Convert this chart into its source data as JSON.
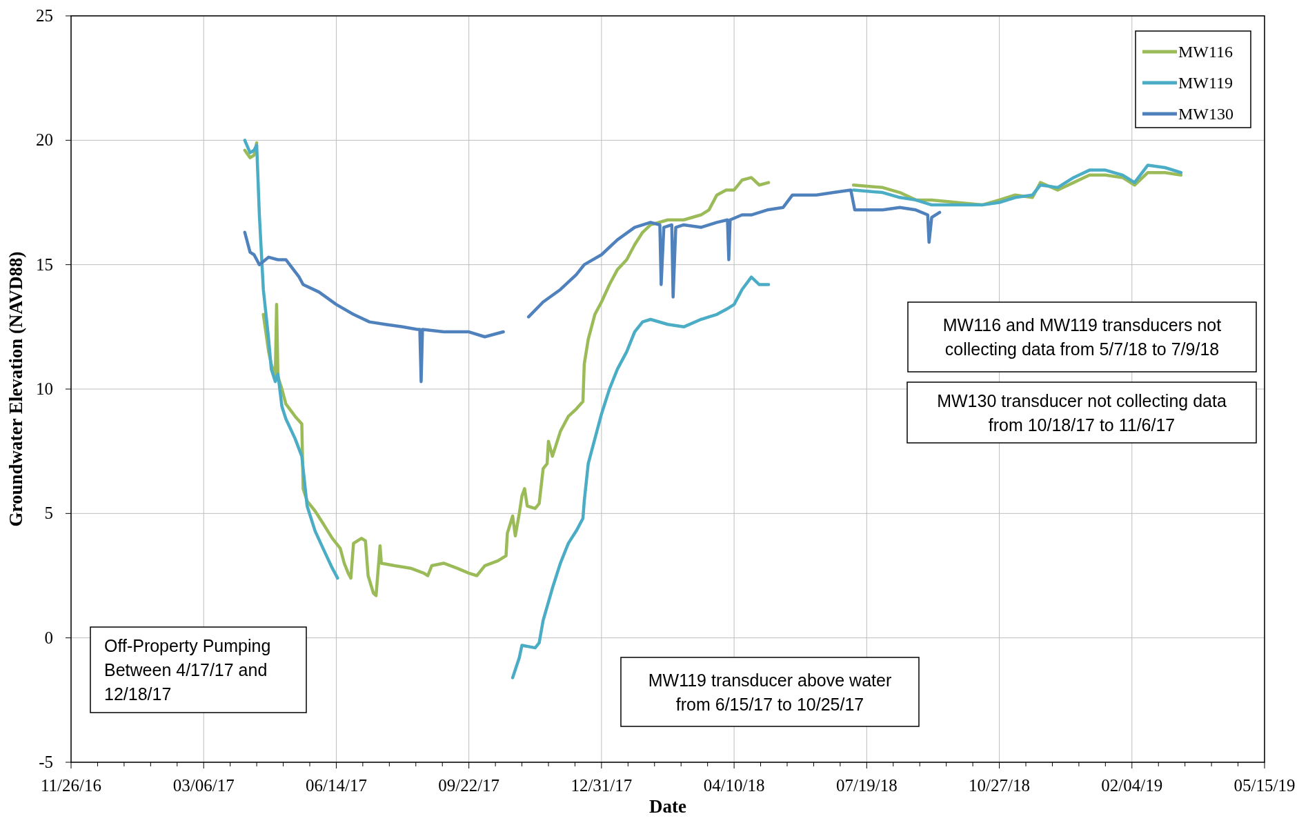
{
  "chart_data": {
    "type": "line",
    "xlabel": "Date",
    "ylabel": "Groundwater Elevation (NAVD88)",
    "xlim": [
      "2016-11-26",
      "2019-05-15"
    ],
    "ylim": [
      -5,
      25
    ],
    "yticks": [
      -5,
      0,
      5,
      10,
      15,
      20,
      25
    ],
    "xticks": [
      {
        "value": "2016-11-26",
        "label": "11/26/16"
      },
      {
        "value": "2016-12-16",
        "label": null
      },
      {
        "value": "2017-01-05",
        "label": null
      },
      {
        "value": "2017-01-25",
        "label": null
      },
      {
        "value": "2017-02-14",
        "label": null
      },
      {
        "value": "2017-03-06",
        "label": "03/06/17"
      },
      {
        "value": "2017-03-26",
        "label": null
      },
      {
        "value": "2017-04-15",
        "label": null
      },
      {
        "value": "2017-05-05",
        "label": null
      },
      {
        "value": "2017-05-25",
        "label": null
      },
      {
        "value": "2017-06-14",
        "label": "06/14/17"
      },
      {
        "value": "2017-07-04",
        "label": null
      },
      {
        "value": "2017-07-24",
        "label": null
      },
      {
        "value": "2017-08-13",
        "label": null
      },
      {
        "value": "2017-09-02",
        "label": null
      },
      {
        "value": "2017-09-22",
        "label": "09/22/17"
      },
      {
        "value": "2017-10-12",
        "label": null
      },
      {
        "value": "2017-11-01",
        "label": null
      },
      {
        "value": "2017-11-21",
        "label": null
      },
      {
        "value": "2017-12-11",
        "label": null
      },
      {
        "value": "2017-12-31",
        "label": "12/31/17"
      },
      {
        "value": "2018-01-20",
        "label": null
      },
      {
        "value": "2018-02-09",
        "label": null
      },
      {
        "value": "2018-03-01",
        "label": null
      },
      {
        "value": "2018-03-21",
        "label": null
      },
      {
        "value": "2018-04-10",
        "label": "04/10/18"
      },
      {
        "value": "2018-04-30",
        "label": null
      },
      {
        "value": "2018-05-20",
        "label": null
      },
      {
        "value": "2018-06-09",
        "label": null
      },
      {
        "value": "2018-06-29",
        "label": null
      },
      {
        "value": "2018-07-19",
        "label": "07/19/18"
      },
      {
        "value": "2018-08-08",
        "label": null
      },
      {
        "value": "2018-08-28",
        "label": null
      },
      {
        "value": "2018-09-17",
        "label": null
      },
      {
        "value": "2018-10-07",
        "label": null
      },
      {
        "value": "2018-10-27",
        "label": "10/27/18"
      },
      {
        "value": "2018-11-16",
        "label": null
      },
      {
        "value": "2018-12-06",
        "label": null
      },
      {
        "value": "2018-12-26",
        "label": null
      },
      {
        "value": "2019-01-15",
        "label": null
      },
      {
        "value": "2019-02-04",
        "label": "02/04/19"
      },
      {
        "value": "2019-02-24",
        "label": null
      },
      {
        "value": "2019-03-16",
        "label": null
      },
      {
        "value": "2019-04-05",
        "label": null
      },
      {
        "value": "2019-04-25",
        "label": null
      },
      {
        "value": "2019-05-15",
        "label": "05/15/19"
      }
    ],
    "grid": true,
    "legend": "top right",
    "marker": "none",
    "line_style": "solid",
    "series": [
      {
        "name": "MW116",
        "color": "#9bbb59",
        "x": [
          "2017-04-06",
          "2017-04-10",
          "2017-04-13",
          "2017-04-15",
          "2017-04-17",
          "2017-04-20",
          "2017-04-24",
          "2017-04-26",
          "2017-04-29",
          "2017-04-30",
          "2017-05-01",
          "2017-05-04",
          "2017-05-07",
          "2017-05-14",
          "2017-05-19",
          "2017-05-20",
          "2017-05-23",
          "2017-05-29",
          "2017-06-04",
          "2017-06-11",
          "2017-06-17",
          "2017-06-20",
          "2017-06-23",
          "2017-06-25",
          "2017-06-27",
          "2017-07-03",
          "2017-07-06",
          "2017-07-08",
          "2017-07-12",
          "2017-07-14",
          "2017-07-17",
          "2017-07-18",
          "2017-07-28",
          "2017-08-09",
          "2017-08-19",
          "2017-08-22",
          "2017-08-25",
          "2017-09-03",
          "2017-09-13",
          "2017-09-22",
          "2017-09-28",
          "2017-10-04",
          "2017-10-14",
          "2017-10-20",
          "2017-10-21",
          "2017-10-25",
          "2017-10-27",
          "2017-10-30",
          "2017-11-01",
          "2017-11-03",
          "2017-11-05",
          "2017-11-11",
          "2017-11-14",
          "2017-11-17",
          "2017-11-20",
          "2017-11-21",
          "2017-11-24",
          "2017-11-30",
          "2017-12-06",
          "2017-12-12",
          "2017-12-17",
          "2017-12-18",
          "2017-12-21",
          "2017-12-26",
          "2017-12-31",
          "2018-01-06",
          "2018-01-12",
          "2018-01-19",
          "2018-01-25",
          "2018-01-31",
          "2018-02-06",
          "2018-02-19",
          "2018-03-03",
          "2018-03-16",
          "2018-03-22",
          "2018-03-28",
          "2018-04-04",
          "2018-04-10",
          "2018-04-16",
          "2018-04-23",
          "2018-04-29",
          "2018-05-06",
          "2018-06-08",
          "2018-07-09",
          "2018-07-31",
          "2018-08-13",
          "2018-08-25",
          "2018-09-06",
          "2018-09-25",
          "2018-10-14",
          "2018-10-27",
          "2018-11-08",
          "2018-11-21",
          "2018-11-27",
          "2018-12-10",
          "2018-12-22",
          "2019-01-03",
          "2019-01-15",
          "2019-01-28",
          "2019-02-06",
          "2019-02-16",
          "2019-03-01",
          "2019-03-13"
        ],
        "values": [
          19.6,
          19.3,
          19.4,
          19.9,
          null,
          13,
          11.5,
          11,
          10.5,
          13.4,
          10.5,
          10,
          9.4,
          8.9,
          8.6,
          6,
          5.5,
          5.1,
          4.6,
          4,
          3.6,
          3,
          2.6,
          2.4,
          3.8,
          4,
          3.9,
          2.5,
          1.8,
          1.7,
          3.7,
          3,
          2.9,
          2.8,
          2.6,
          2.5,
          2.9,
          3,
          2.8,
          2.6,
          2.5,
          2.9,
          3.1,
          3.3,
          4.2,
          4.9,
          4.1,
          5,
          5.7,
          6,
          5.3,
          5.2,
          5.4,
          6.8,
          7,
          7.9,
          7.3,
          8.3,
          8.9,
          9.2,
          9.5,
          11,
          12,
          13,
          13.5,
          14.2,
          14.8,
          15.2,
          15.8,
          16.3,
          16.6,
          16.8,
          16.8,
          17,
          17.2,
          17.8,
          18,
          18,
          18.4,
          18.5,
          18.2,
          18.3,
          null,
          18.2,
          18.1,
          17.9,
          17.6,
          17.6,
          17.5,
          17.4,
          17.6,
          17.8,
          17.7,
          18.3,
          18,
          18.3,
          18.6,
          18.6,
          18.5,
          18.2,
          18.7,
          18.7,
          18.6
        ]
      },
      {
        "name": "MW119",
        "color": "#4bacc6",
        "x": [
          "2017-04-06",
          "2017-04-10",
          "2017-04-13",
          "2017-04-15",
          "2017-04-17",
          "2017-04-20",
          "2017-04-24",
          "2017-04-26",
          "2017-04-29",
          "2017-05-01",
          "2017-05-04",
          "2017-05-07",
          "2017-05-14",
          "2017-05-19",
          "2017-05-23",
          "2017-05-29",
          "2017-06-04",
          "2017-06-11",
          "2017-06-15",
          "2017-08-20",
          "2017-10-25",
          "2017-10-30",
          "2017-11-01",
          "2017-11-11",
          "2017-11-14",
          "2017-11-17",
          "2017-11-24",
          "2017-11-30",
          "2017-12-06",
          "2017-12-12",
          "2017-12-17",
          "2017-12-18",
          "2017-12-21",
          "2017-12-26",
          "2017-12-31",
          "2018-01-06",
          "2018-01-12",
          "2018-01-19",
          "2018-01-25",
          "2018-01-31",
          "2018-02-06",
          "2018-02-19",
          "2018-03-03",
          "2018-03-16",
          "2018-03-22",
          "2018-03-28",
          "2018-04-04",
          "2018-04-10",
          "2018-04-16",
          "2018-04-23",
          "2018-04-29",
          "2018-05-06",
          "2018-06-08",
          "2018-07-09",
          "2018-07-31",
          "2018-08-13",
          "2018-08-25",
          "2018-09-06",
          "2018-09-25",
          "2018-10-14",
          "2018-10-27",
          "2018-11-08",
          "2018-11-21",
          "2018-11-27",
          "2018-12-10",
          "2018-12-22",
          "2019-01-03",
          "2019-01-15",
          "2019-01-28",
          "2019-02-06",
          "2019-02-16",
          "2019-03-01",
          "2019-03-13"
        ],
        "values": [
          20,
          19.5,
          19.6,
          19.8,
          17,
          14,
          12,
          10.8,
          10.3,
          10.6,
          9.3,
          8.8,
          8,
          7.3,
          5.3,
          4.3,
          3.6,
          2.8,
          2.4,
          null,
          -1.6,
          -0.8,
          -0.3,
          -0.4,
          -0.2,
          0.7,
          2,
          3,
          3.8,
          4.3,
          4.8,
          5.5,
          7,
          8,
          9,
          10,
          10.8,
          11.5,
          12.3,
          12.7,
          12.8,
          12.6,
          12.5,
          12.8,
          12.9,
          13,
          13.2,
          13.4,
          14,
          14.5,
          14.2,
          14.2,
          null,
          18,
          17.9,
          17.7,
          17.6,
          17.4,
          17.4,
          17.4,
          17.5,
          17.7,
          17.8,
          18.2,
          18.1,
          18.5,
          18.8,
          18.8,
          18.6,
          18.3,
          19,
          18.9,
          18.7
        ]
      },
      {
        "name": "MW130",
        "color": "#4f81bd",
        "x": [
          "2017-04-06",
          "2017-04-10",
          "2017-04-13",
          "2017-04-17",
          "2017-04-24",
          "2017-05-01",
          "2017-05-07",
          "2017-05-17",
          "2017-05-20",
          "2017-06-01",
          "2017-06-14",
          "2017-06-27",
          "2017-07-09",
          "2017-07-21",
          "2017-08-03",
          "2017-08-14",
          "2017-08-16",
          "2017-08-17",
          "2017-08-18",
          "2017-09-03",
          "2017-09-22",
          "2017-10-04",
          "2017-10-18",
          "2017-10-27",
          "2017-11-06",
          "2017-11-17",
          "2017-11-30",
          "2017-12-12",
          "2017-12-18",
          "2017-12-31",
          "2018-01-12",
          "2018-01-25",
          "2018-02-06",
          "2018-02-13",
          "2018-02-14",
          "2018-02-16",
          "2018-02-22",
          "2018-02-23",
          "2018-02-25",
          "2018-03-03",
          "2018-03-16",
          "2018-03-28",
          "2018-04-05",
          "2018-04-06",
          "2018-04-07",
          "2018-04-16",
          "2018-04-23",
          "2018-05-05",
          "2018-05-17",
          "2018-05-24",
          "2018-06-11",
          "2018-06-24",
          "2018-07-07",
          "2018-07-10",
          "2018-07-19",
          "2018-07-31",
          "2018-08-13",
          "2018-08-25",
          "2018-09-03",
          "2018-09-04",
          "2018-09-06",
          "2018-09-12"
        ],
        "values": [
          16.3,
          15.5,
          15.4,
          15,
          15.3,
          15.2,
          15.2,
          14.5,
          14.2,
          13.9,
          13.4,
          13,
          12.7,
          12.6,
          12.5,
          12.4,
          12.4,
          10.3,
          12.4,
          12.3,
          12.3,
          12.1,
          12.3,
          null,
          12.9,
          13.5,
          14,
          14.6,
          15,
          15.4,
          16,
          16.5,
          16.7,
          16.6,
          14.2,
          16.5,
          16.6,
          13.7,
          16.5,
          16.6,
          16.5,
          16.7,
          16.8,
          15.2,
          16.8,
          17,
          17,
          17.2,
          17.3,
          17.8,
          17.8,
          17.9,
          18,
          17.2,
          17.2,
          17.2,
          17.3,
          17.2,
          17,
          15.9,
          16.9,
          17.1
        ]
      }
    ],
    "annotations": [
      "Off-Property Pumping\nBetween 4/17/17 and\n12/18/17",
      "MW119 transducer above water\nfrom 6/15/17 to 10/25/17",
      "MW116 and MW119 transducers not\ncollecting data from 5/7/18 to 7/9/18",
      "MW130 transducer not collecting data\nfrom 10/18/17 to 11/6/17"
    ]
  }
}
